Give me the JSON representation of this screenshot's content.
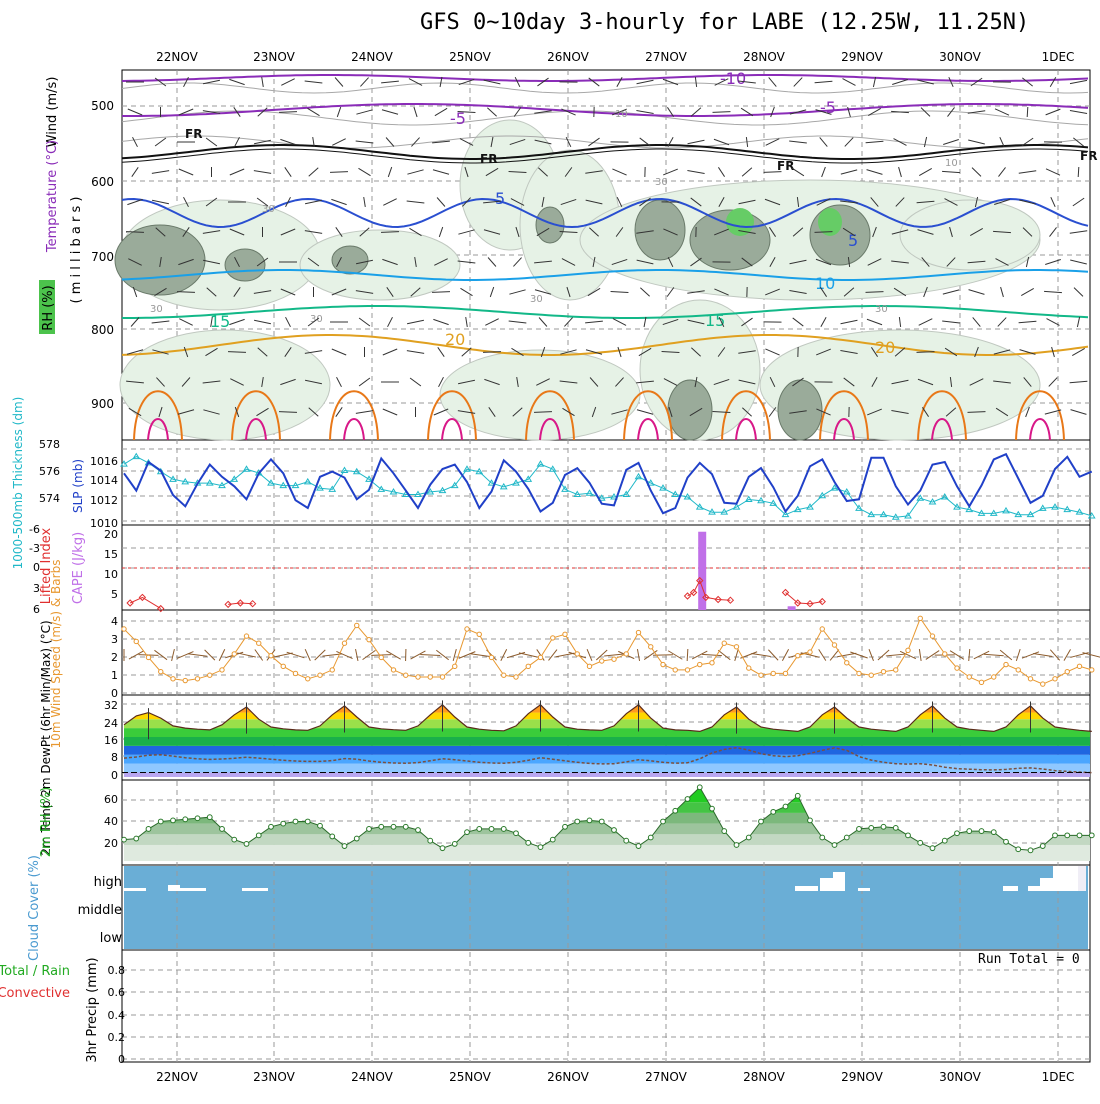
{
  "title": "GFS 0~10day 3-hourly for LABE (12.25W, 11.25N)",
  "colors": {
    "temp_purple": "#8a2cb8",
    "freezing_black": "#111111",
    "temp_blue5": "#2a4fd0",
    "temp_blue10": "#1aa0e8",
    "temp_green15": "#12b888",
    "temp_orange20": "#e0a020",
    "temp_orange": "#e87818",
    "temp_magenta": "#d81888",
    "rh_light": "#e6f2e6",
    "rh_mid": "#9aab9a",
    "rh_high": "#66cc66",
    "thickness": "#20b8c8",
    "slp": "#2040c8",
    "cape": "#c070e8",
    "lifted": "#e03030",
    "wind": "#e89830",
    "barb": "#8b5a2b",
    "cloud": "#6aaed6",
    "rh2m": "#22aa22"
  },
  "run_total_text": "Run Total = 0",
  "chart_data": [
    {
      "name": "upper-air-cross-section",
      "type": "contour",
      "ylabel_wind": "Wind (m/s)",
      "ylabel_temp": "Temperature (°C)",
      "ylabel_rh": "RH (%)",
      "ylabel_mb": "( m i l l i b a r s )",
      "pressure_ticks": [
        "500",
        "600",
        "700",
        "800",
        "900"
      ],
      "contour_labels": [
        "-10",
        "-5",
        "5",
        "-5",
        "FR",
        "FR",
        "FR",
        "FR",
        "5",
        "5",
        "10",
        "15",
        "15",
        "20",
        "20",
        "10",
        "10",
        "30",
        "30",
        "30",
        "30",
        "30",
        "30"
      ],
      "x_ticks": [
        "22NOV",
        "23NOV",
        "24NOV",
        "25NOV",
        "26NOV",
        "27NOV",
        "28NOV",
        "29NOV",
        "30NOV",
        "1DEC"
      ]
    },
    {
      "name": "thickness-slp",
      "type": "line",
      "ylabel_left": "1000-500mb Thickness (dm)",
      "ylabel_right": "SLP (mb)",
      "left_ticks": [
        "578",
        "576",
        "574"
      ],
      "right_ticks": [
        "1016",
        "1014",
        "1012",
        "1010"
      ],
      "ylim_left": [
        572.5,
        578.2
      ],
      "ylim_right": [
        1009.5,
        1017.8
      ],
      "series": [
        {
          "name": "SLP (mb)",
          "values": [
            1015.0,
            1013.0,
            1016.3,
            1015.3,
            1012.5,
            1011.2,
            1013.8,
            1016.0,
            1014.6,
            1013.5,
            1012.0,
            1015.0,
            1016.6,
            1015.0,
            1011.9,
            1011.0,
            1014.6,
            1015.2,
            1014.5,
            1012.0,
            1013.1,
            1016.7,
            1015.0,
            1013.0,
            1011.0,
            1013.7,
            1015.5,
            1016.0,
            1014.0,
            1011.0,
            1012.9,
            1016.5,
            1015.2,
            1013.2,
            1010.6,
            1011.6,
            1014.8,
            1015.6,
            1013.9,
            1011.5,
            1011.3,
            1015.4,
            1016.2,
            1013.0,
            1010.4,
            1011.0,
            1014.5,
            1016.2,
            1014.9,
            1011.6,
            1011.5,
            1014.6,
            1015.6,
            1013.4,
            1010.6,
            1012.4,
            1015.8,
            1016.6,
            1014.0,
            1011.8,
            1012.0,
            1016.8,
            1016.8,
            1013.5,
            1011.4,
            1013.0,
            1016.0,
            1016.3,
            1013.5,
            1011.2,
            1013.6,
            1016.6,
            1017.2,
            1014.4,
            1011.6,
            1012.4,
            1015.5,
            1016.9,
            1014.6,
            1015.2
          ]
        },
        {
          "name": "1000-500mb Thickness (dm)",
          "values": [
            577.0,
            577.6,
            577.1,
            576.4,
            575.8,
            575.6,
            575.5,
            575.5,
            575.3,
            575.8,
            576.6,
            576.3,
            575.5,
            575.3,
            575.3,
            575.6,
            575.1,
            575.0,
            576.5,
            576.4,
            575.8,
            575.0,
            574.8,
            574.6,
            574.6,
            574.8,
            574.9,
            575.3,
            576.6,
            576.4,
            575.5,
            575.2,
            575.5,
            575.8,
            577.0,
            576.6,
            575.0,
            574.6,
            574.7,
            574.3,
            574.4,
            574.6,
            576.0,
            575.5,
            575.1,
            574.6,
            574.4,
            573.6,
            573.2,
            573.2,
            573.6,
            574.2,
            574.1,
            573.9,
            573.0,
            573.4,
            573.6,
            574.5,
            575.1,
            574.8,
            573.5,
            573.0,
            573.0,
            572.8,
            572.9,
            574.3,
            574.0,
            574.4,
            573.6,
            573.4,
            573.1,
            573.1,
            573.3,
            573.0,
            573.0,
            573.5,
            573.6,
            573.4,
            573.2,
            572.9
          ]
        }
      ]
    },
    {
      "name": "cape-lifted-index",
      "type": "bar",
      "ylabel_left": "Lifted Index",
      "ylabel_right": "CAPE (J/kg)",
      "left_ticks": [
        "-6",
        "-3",
        "0",
        "3",
        "6"
      ],
      "right_ticks": [
        "20",
        "15",
        "10",
        "5"
      ],
      "cape_values": [
        {
          "x": 47.2,
          "value": 21
        },
        {
          "x": 54.5,
          "value": 1
        }
      ],
      "lifted_index": [
        {
          "x": 0.5,
          "value": 5.0
        },
        {
          "x": 1.5,
          "value": 4.2
        },
        {
          "x": 3.0,
          "value": 5.8
        },
        {
          "x": 8.5,
          "value": 5.2
        },
        {
          "x": 9.5,
          "value": 5.0
        },
        {
          "x": 10.5,
          "value": 5.1
        },
        {
          "x": 46.0,
          "value": 4.0
        },
        {
          "x": 46.5,
          "value": 3.5
        },
        {
          "x": 47.0,
          "value": 1.8
        },
        {
          "x": 47.5,
          "value": 4.2
        },
        {
          "x": 48.5,
          "value": 4.5
        },
        {
          "x": 49.5,
          "value": 4.6
        },
        {
          "x": 54.0,
          "value": 3.5
        },
        {
          "x": 55.0,
          "value": 5.0
        },
        {
          "x": 56.0,
          "value": 5.1
        },
        {
          "x": 57.0,
          "value": 4.8
        }
      ]
    },
    {
      "name": "10m-wind",
      "type": "line",
      "ylabel": "10m Wind Speed (m/s) & Barbs",
      "y_ticks": [
        "4",
        "3",
        "2",
        "1",
        "0"
      ],
      "ylim": [
        0,
        4.5
      ],
      "series": [
        {
          "name": "10m Wind Speed (m/s)",
          "values": [
            3.6,
            2.9,
            2.0,
            1.2,
            0.8,
            0.7,
            0.8,
            1.0,
            1.3,
            2.2,
            3.2,
            2.8,
            2.1,
            1.5,
            1.1,
            0.8,
            1.0,
            1.3,
            2.8,
            3.8,
            3.0,
            2.0,
            1.3,
            1.0,
            0.9,
            0.9,
            0.9,
            1.5,
            3.6,
            3.3,
            2.0,
            1.0,
            0.9,
            1.5,
            2.0,
            3.1,
            3.3,
            2.2,
            1.5,
            1.8,
            1.9,
            2.2,
            3.4,
            2.6,
            1.6,
            1.3,
            1.3,
            1.6,
            1.7,
            2.8,
            2.6,
            1.4,
            1.0,
            1.1,
            1.1,
            2.1,
            2.3,
            3.6,
            2.7,
            1.7,
            1.1,
            1.0,
            1.2,
            1.3,
            2.4,
            4.2,
            3.2,
            2.2,
            1.4,
            0.9,
            0.6,
            0.9,
            1.6,
            1.3,
            0.8,
            0.5,
            0.8,
            1.2,
            1.5,
            1.3
          ]
        }
      ]
    },
    {
      "name": "2m-temp",
      "type": "area",
      "ylabel": "2m Temp 2m DewPt (6hr Min/Max) (°C)",
      "y_ticks": [
        "32",
        "24",
        "16",
        "8",
        "0"
      ],
      "ylim": [
        -2,
        34
      ],
      "series": [
        {
          "name": "2m Temp",
          "values": [
            21.5,
            25.5,
            27.0,
            24.5,
            21.0,
            20.0,
            19.5,
            19.2,
            21.5,
            26.0,
            29.5,
            24.0,
            20.5,
            19.7,
            19.2,
            19.0,
            21.0,
            26.0,
            30.0,
            25.0,
            20.5,
            19.7,
            19.3,
            19.0,
            21.0,
            26.0,
            30.5,
            25.0,
            20.5,
            19.5,
            19.0,
            18.8,
            21.0,
            26.5,
            30.5,
            25.0,
            20.5,
            19.5,
            19.2,
            19.0,
            21.0,
            26.5,
            30.5,
            24.5,
            20.0,
            19.2,
            19.0,
            18.5,
            20.5,
            26.0,
            29.5,
            24.0,
            20.5,
            19.5,
            19.0,
            18.5,
            20.5,
            26.0,
            29.5,
            24.5,
            20.5,
            19.5,
            19.0,
            18.5,
            20.5,
            26.0,
            30.0,
            24.5,
            20.5,
            19.5,
            19.0,
            18.5,
            20.5,
            26.0,
            30.0,
            24.5,
            20.5,
            19.7,
            19.0,
            18.5
          ]
        },
        {
          "name": "2m DewPt",
          "values": [
            6.5,
            7.0,
            7.8,
            8.0,
            7.4,
            6.7,
            6.2,
            5.9,
            6.1,
            6.4,
            6.9,
            6.5,
            6.0,
            5.5,
            5.2,
            5.0,
            5.0,
            5.4,
            6.3,
            6.0,
            5.2,
            4.6,
            4.3,
            4.2,
            4.5,
            5.3,
            6.2,
            5.8,
            5.2,
            4.6,
            4.3,
            4.2,
            4.6,
            5.5,
            6.7,
            6.0,
            5.3,
            4.6,
            4.1,
            3.9,
            4.0,
            4.8,
            5.8,
            5.3,
            4.6,
            4.2,
            4.4,
            6.2,
            8.8,
            10.4,
            11.2,
            10.1,
            8.5,
            7.6,
            7.2,
            7.6,
            8.6,
            10.0,
            11.1,
            10.0,
            7.2,
            5.6,
            4.6,
            4.0,
            3.8,
            4.0,
            3.4,
            2.4,
            1.8,
            1.5,
            1.3,
            1.2,
            1.4,
            1.9,
            2.1,
            1.6,
            0.9,
            0.5,
            0.2,
            0.0
          ]
        }
      ]
    },
    {
      "name": "2m-rh",
      "type": "area",
      "ylabel": "2m RH (%)",
      "y_ticks": [
        "60",
        "40",
        "20"
      ],
      "ylim": [
        5,
        78
      ],
      "series": [
        {
          "name": "2m RH",
          "values": [
            25,
            26,
            35,
            42,
            43,
            44,
            45,
            46,
            35,
            25,
            21,
            29,
            37,
            40,
            42,
            42,
            38,
            28,
            19,
            26,
            35,
            37,
            37,
            37,
            34,
            24,
            17,
            21,
            32,
            35,
            35,
            35,
            31,
            22,
            18,
            25,
            37,
            42,
            43,
            42,
            34,
            24,
            19,
            27,
            42,
            52,
            63,
            74,
            54,
            33,
            20,
            27,
            42,
            51,
            56,
            66,
            43,
            27,
            20,
            27,
            35,
            36,
            37,
            36,
            29,
            22,
            17,
            24,
            31,
            33,
            33,
            32,
            23,
            16,
            15,
            19,
            29,
            29,
            29,
            29
          ]
        }
      ]
    },
    {
      "name": "cloud-cover",
      "type": "heatmap",
      "ylabel": "Cloud Cover (%)",
      "levels": [
        "high",
        "middle",
        "low"
      ]
    },
    {
      "name": "precip",
      "type": "bar",
      "ylabel_a": "Total / Rain",
      "ylabel_b": "Convective",
      "ylabel_c": "3hr Precip (mm)",
      "y_ticks": [
        "0.8",
        "0.6",
        "0.4",
        "0.2",
        "0"
      ],
      "ylim": [
        0,
        0.95
      ],
      "values": []
    }
  ]
}
